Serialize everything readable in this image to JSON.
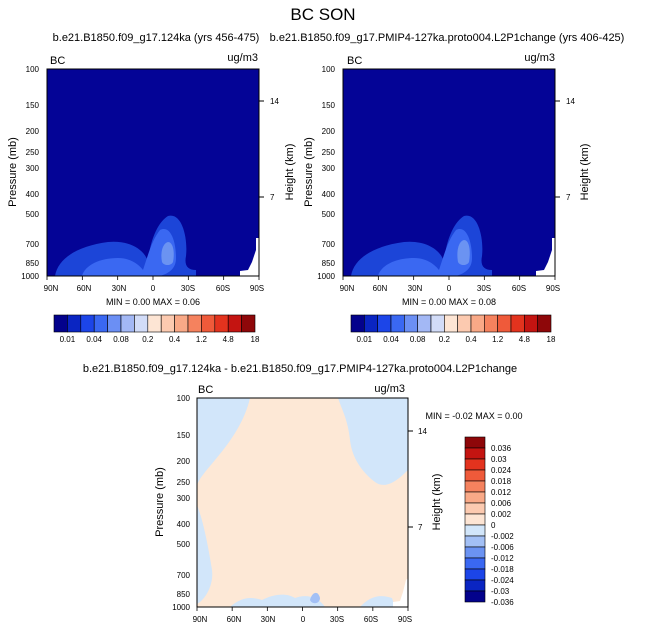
{
  "figure": {
    "title": "BC SON"
  },
  "chart_data": [
    {
      "type": "contour",
      "title": "b.e21.B1850.f09_g17.124ka (yrs 456-475)",
      "left_label": "BC",
      "right_label": "ug/m3",
      "ylabel": "Pressure (mb)",
      "ylabel_right": "Height (km)",
      "x_ticks": [
        "90N",
        "60N",
        "30N",
        "0",
        "30S",
        "60S",
        "90S"
      ],
      "y_ticks": [
        "100",
        "150",
        "200",
        "250",
        "300",
        "400",
        "500",
        "700",
        "850",
        "1000"
      ],
      "y_ticks_right": [
        "14",
        "7"
      ],
      "stats": "MIN =  0.00  MAX =  0.06",
      "min": 0.0,
      "max": 0.06
    },
    {
      "type": "contour",
      "title": "b.e21.B1850.f09_g17.PMIP4-127ka.proto004.L2P1change (yrs 406-425)",
      "left_label": "BC",
      "right_label": "ug/m3",
      "ylabel": "Pressure (mb)",
      "ylabel_right": "Height (km)",
      "x_ticks": [
        "90N",
        "60N",
        "30N",
        "0",
        "30S",
        "60S",
        "90S"
      ],
      "y_ticks": [
        "100",
        "150",
        "200",
        "250",
        "300",
        "400",
        "500",
        "700",
        "850",
        "1000"
      ],
      "y_ticks_right": [
        "14",
        "7"
      ],
      "stats": "MIN =  0.00  MAX =  0.08",
      "min": 0.0,
      "max": 0.08
    },
    {
      "type": "contour",
      "title": "b.e21.B1850.f09_g17.124ka - b.e21.B1850.f09_g17.PMIP4-127ka.proto004.L2P1change",
      "left_label": "BC",
      "right_label": "ug/m3",
      "ylabel": "Pressure (mb)",
      "ylabel_right": "Height (km)",
      "x_ticks": [
        "90N",
        "60N",
        "30N",
        "0",
        "30S",
        "60S",
        "90S"
      ],
      "y_ticks": [
        "100",
        "150",
        "200",
        "250",
        "300",
        "400",
        "500",
        "700",
        "850",
        "1000"
      ],
      "y_ticks_right": [
        "14",
        "7"
      ],
      "stats": "MIN = -0.02  MAX =  0.00",
      "min": -0.02,
      "max": 0.0
    }
  ],
  "colorbar_top": {
    "levels": [
      "0.01",
      "0.04",
      "0.08",
      "0.2",
      "0.4",
      "1.2",
      "4.8",
      "18"
    ],
    "colors": [
      "#03028c",
      "#0a25c2",
      "#1c45e8",
      "#3a68f2",
      "#6b8ff4",
      "#a3b8f5",
      "#d2dcf8",
      "#fde5d4",
      "#fccab0",
      "#f9a987",
      "#f5825e",
      "#ef5a3a",
      "#e3331e",
      "#c41411",
      "#8e0709"
    ]
  },
  "colorbar_diff": {
    "levels": [
      "0.036",
      "0.03",
      "0.024",
      "0.018",
      "0.012",
      "0.006",
      "0.002",
      "0",
      "-0.002",
      "-0.006",
      "-0.012",
      "-0.018",
      "-0.024",
      "-0.03",
      "-0.036"
    ],
    "colors": [
      "#8e0709",
      "#c41411",
      "#e3331e",
      "#ef5a3a",
      "#f5825e",
      "#f9a987",
      "#fccab0",
      "#fde5d4",
      "#d2e6fa",
      "#a3c0f5",
      "#6b93f2",
      "#3a68f2",
      "#1c45e8",
      "#0a25c2",
      "#03028c"
    ]
  },
  "colors": {
    "dark_navy": "#040496",
    "blue2": "#1c45d8",
    "blue3": "#3a68f2",
    "blue4": "#6b93f2",
    "diff_pos": "#fde8d6",
    "diff_neg": "#d2e6fa",
    "diff_neg2": "#a3c0f5"
  }
}
